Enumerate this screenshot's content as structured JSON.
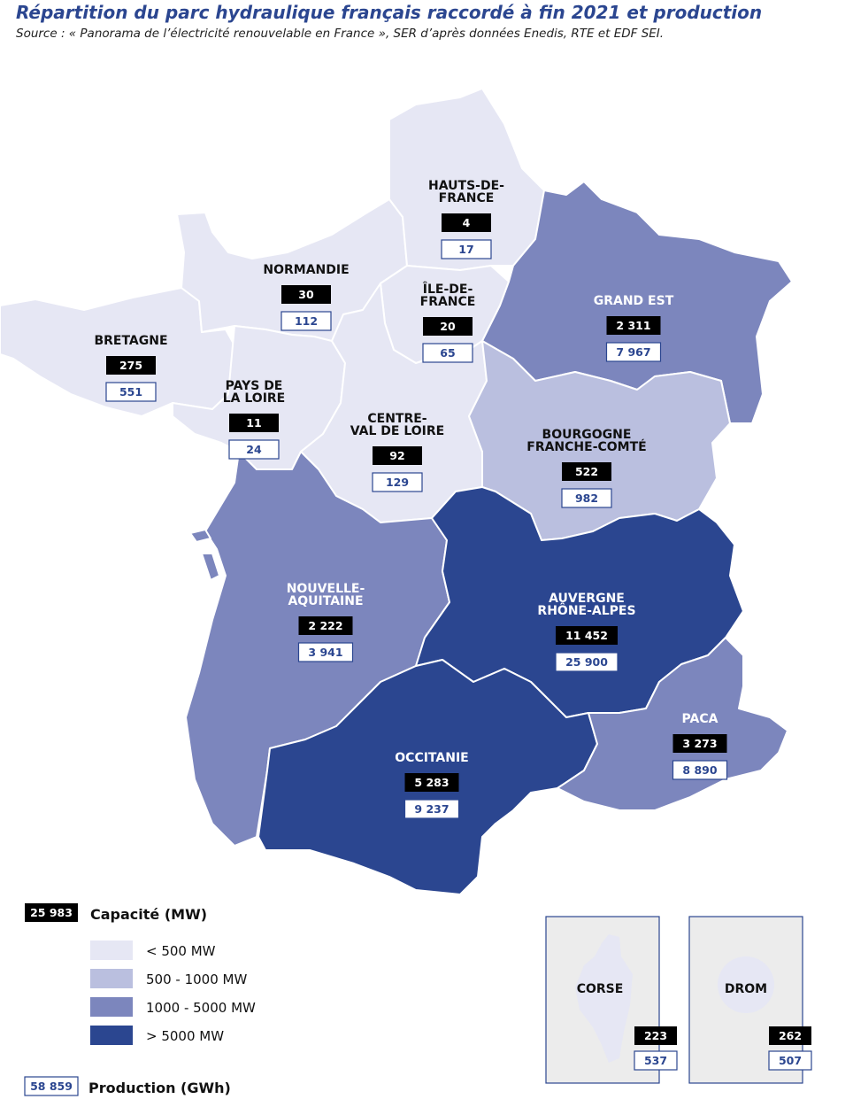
{
  "title": "Répartition du parc hydraulique français raccordé à fin 2021 et production",
  "source": "Source : « Panorama de l’électricité renouvelable en France », SER d’après données Enedis, RTE et EDF SEI.",
  "colors": {
    "lt500": "#e6e7f4",
    "500to1000": "#babfdf",
    "1000to5000": "#7c86bd",
    "gt5000": "#2b4690",
    "accent": "#2b4690"
  },
  "regions": [
    {
      "id": "hauts-de-france",
      "name_lines": [
        "HAUTS-DE-",
        "FRANCE"
      ],
      "capacity": "4",
      "production": "17",
      "cls": "lt500"
    },
    {
      "id": "normandie",
      "name_lines": [
        "NORMANDIE"
      ],
      "capacity": "30",
      "production": "112",
      "cls": "lt500"
    },
    {
      "id": "ile-de-france",
      "name_lines": [
        "ÎLE-DE-",
        "FRANCE"
      ],
      "capacity": "20",
      "production": "65",
      "cls": "lt500"
    },
    {
      "id": "grand-est",
      "name_lines": [
        "GRAND EST"
      ],
      "capacity": "2 311",
      "production": "7 967",
      "cls": "1000to5000"
    },
    {
      "id": "bretagne",
      "name_lines": [
        "BRETAGNE"
      ],
      "capacity": "275",
      "production": "551",
      "cls": "lt500"
    },
    {
      "id": "pays-de-la-loire",
      "name_lines": [
        "PAYS DE",
        "LA LOIRE"
      ],
      "capacity": "11",
      "production": "24",
      "cls": "lt500"
    },
    {
      "id": "centre-val-de-loire",
      "name_lines": [
        "CENTRE-",
        "VAL DE LOIRE"
      ],
      "capacity": "92",
      "production": "129",
      "cls": "lt500"
    },
    {
      "id": "bourgogne-franche-comte",
      "name_lines": [
        "BOURGOGNE",
        "FRANCHE-COMTÉ"
      ],
      "capacity": "522",
      "production": "982",
      "cls": "500to1000"
    },
    {
      "id": "nouvelle-aquitaine",
      "name_lines": [
        "NOUVELLE-",
        "AQUITAINE"
      ],
      "capacity": "2 222",
      "production": "3 941",
      "cls": "1000to5000"
    },
    {
      "id": "auvergne-rhone-alpes",
      "name_lines": [
        "AUVERGNE",
        "RHÔNE-ALPES"
      ],
      "capacity": "11 452",
      "production": "25 900",
      "cls": "gt5000"
    },
    {
      "id": "occitanie",
      "name_lines": [
        "OCCITANIE"
      ],
      "capacity": "5 283",
      "production": "9 237",
      "cls": "gt5000"
    },
    {
      "id": "paca",
      "name_lines": [
        "PACA"
      ],
      "capacity": "3 273",
      "production": "8 890",
      "cls": "1000to5000"
    }
  ],
  "insets": [
    {
      "id": "corse",
      "name": "CORSE",
      "capacity": "223",
      "production": "537",
      "cls": "lt500"
    },
    {
      "id": "drom",
      "name": "DROM",
      "capacity": "262",
      "production": "507",
      "cls": "lt500"
    }
  ],
  "legend": {
    "capacity_total": "25 983",
    "capacity_title": "Capacité (MW)",
    "classes": [
      {
        "cls": "lt500",
        "label": "< 500 MW"
      },
      {
        "cls": "500to1000",
        "label": "500 - 1000 MW"
      },
      {
        "cls": "1000to5000",
        "label": "1000 - 5000 MW"
      },
      {
        "cls": "gt5000",
        "label": "> 5000 MW"
      }
    ],
    "production_total": "58 859",
    "production_title": "Production (GWh)"
  }
}
